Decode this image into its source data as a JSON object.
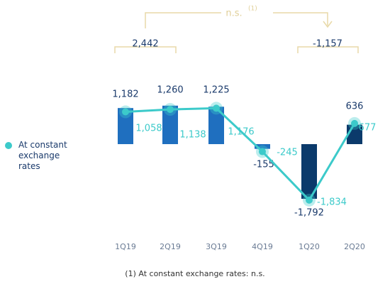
{
  "chart_data": {
    "type": "bar",
    "categories": [
      "1Q19",
      "2Q19",
      "3Q19",
      "4Q19",
      "1Q20",
      "2Q20"
    ],
    "series": [
      {
        "type": "bar",
        "colors": [
          "#1f6fbf",
          "#1f6fbf",
          "#1f6fbf",
          "#1f6fbf",
          "#0b3a6b",
          "#0b3a6b"
        ],
        "values": [
          1182,
          1260,
          1225,
          -155,
          -1792,
          636
        ],
        "value_labels": [
          "1,182",
          "1,260",
          "1,225",
          "-155",
          "-1,792",
          "636"
        ]
      },
      {
        "type": "line",
        "name": "At constant exchange rates",
        "color": "#3ccaca",
        "values": [
          1058,
          1138,
          1176,
          -245,
          -1834,
          677
        ],
        "value_labels": [
          "1,058",
          "1,138",
          "1,176",
          "-245",
          "-1,834",
          "677"
        ]
      }
    ],
    "annotations": [
      {
        "text": "2,442"
      },
      {
        "text": "-1,157"
      },
      {
        "text": "n.s.",
        "superscript": "(1)"
      }
    ],
    "footnote": "(1) At constant exchange rates: n.s."
  }
}
